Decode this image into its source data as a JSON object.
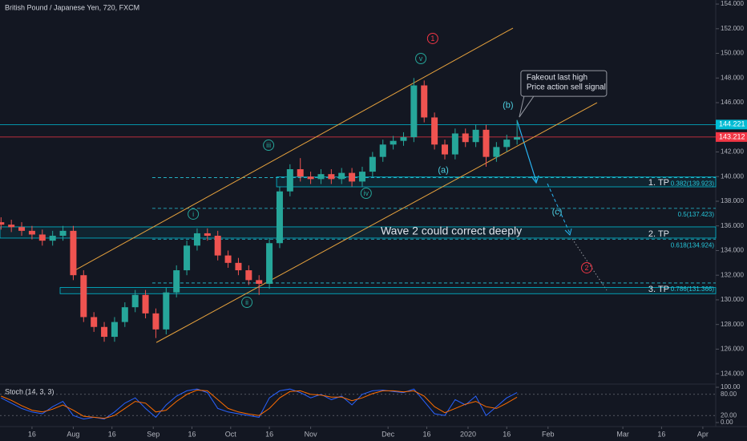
{
  "chart_data": [
    {
      "type": "candlestick",
      "title": "British Pound / Japanese Yen, 720, FXCM",
      "up_color": "#26a69a",
      "down_color": "#ef5350",
      "xlim": [
        2.6,
        280
      ],
      "ylim": [
        123.23,
        154.33
      ],
      "yticks": [
        {
          "value": 124,
          "label": "124.000"
        },
        {
          "value": 126,
          "label": "126.000"
        },
        {
          "value": 128,
          "label": "128.000"
        },
        {
          "value": 130,
          "label": "130.000"
        },
        {
          "value": 132,
          "label": "132.000"
        },
        {
          "value": 134,
          "label": "134.000"
        },
        {
          "value": 136,
          "label": "136.000"
        },
        {
          "value": 138,
          "label": "138.000"
        },
        {
          "value": 140,
          "label": "140.000"
        },
        {
          "value": 142,
          "label": "142.000"
        },
        {
          "value": 144,
          "label": "144.000"
        },
        {
          "value": 146,
          "label": "146.000"
        },
        {
          "value": 148,
          "label": "148.000"
        },
        {
          "value": 150,
          "label": "150.000"
        },
        {
          "value": 152,
          "label": "152.000"
        },
        {
          "value": 154,
          "label": "154.000"
        }
      ],
      "x": [
        3,
        7,
        11,
        15,
        19,
        23,
        27,
        31,
        35,
        39,
        43,
        47,
        51,
        55,
        59,
        63,
        67,
        71,
        75,
        79,
        83,
        87,
        91,
        95,
        99,
        103,
        107,
        111,
        115,
        119,
        123,
        127,
        131,
        135,
        139,
        143,
        147,
        151,
        155,
        159,
        163,
        167,
        171,
        175,
        179,
        183,
        187,
        191,
        195,
        199,
        203
      ],
      "open": [
        136.3,
        136.1,
        135.9,
        135.6,
        135.3,
        134.8,
        135.2,
        135.6,
        132.0,
        128.6,
        127.8,
        127.0,
        128.2,
        129.4,
        130.4,
        128.9,
        127.6,
        130.6,
        132.4,
        134.4,
        135.4,
        135.2,
        133.6,
        133.0,
        132.4,
        131.6,
        131.3,
        134.6,
        138.8,
        140.6,
        140.0,
        139.8,
        140.2,
        139.8,
        140.3,
        139.6,
        140.4,
        141.6,
        142.6,
        142.9,
        143.2,
        147.4,
        144.8,
        142.6,
        141.8,
        143.5,
        142.8,
        143.8,
        141.6,
        142.4,
        143.0
      ],
      "high": [
        136.7,
        136.5,
        136.3,
        136.0,
        135.7,
        135.6,
        136.0,
        136.0,
        132.4,
        129.0,
        128.2,
        128.6,
        129.8,
        130.8,
        130.8,
        129.3,
        131.0,
        132.8,
        134.8,
        135.8,
        135.8,
        135.6,
        134.0,
        133.4,
        132.8,
        132.0,
        135.0,
        139.2,
        141.0,
        141.5,
        140.4,
        140.6,
        140.6,
        140.7,
        140.7,
        140.8,
        142.0,
        143.0,
        143.3,
        143.6,
        148.0,
        147.8,
        145.2,
        143.0,
        143.9,
        143.9,
        144.2,
        144.2,
        142.8,
        143.4,
        144.6
      ],
      "low": [
        135.7,
        135.5,
        135.2,
        134.9,
        134.4,
        134.4,
        134.8,
        131.6,
        128.2,
        127.4,
        126.6,
        126.6,
        127.8,
        129.0,
        128.5,
        126.9,
        127.2,
        130.2,
        132.0,
        134.0,
        134.8,
        133.2,
        132.6,
        132.0,
        131.2,
        130.4,
        130.9,
        134.2,
        138.4,
        139.6,
        139.4,
        139.4,
        139.4,
        139.4,
        139.2,
        139.2,
        140.0,
        141.2,
        142.2,
        142.5,
        142.8,
        144.4,
        142.2,
        141.4,
        141.4,
        142.4,
        142.4,
        140.8,
        141.2,
        142.0,
        142.6
      ],
      "close": [
        136.1,
        135.9,
        135.6,
        135.3,
        134.8,
        135.2,
        135.6,
        132.0,
        128.6,
        127.8,
        127.0,
        128.2,
        129.4,
        130.4,
        128.9,
        127.6,
        130.6,
        132.4,
        134.4,
        135.4,
        135.2,
        133.6,
        133.0,
        132.4,
        131.6,
        131.3,
        134.6,
        138.8,
        140.6,
        140.0,
        139.8,
        140.2,
        139.8,
        140.3,
        139.6,
        140.4,
        141.6,
        142.6,
        142.9,
        143.2,
        147.4,
        144.8,
        142.6,
        141.8,
        143.5,
        142.8,
        143.8,
        141.6,
        142.4,
        143.0,
        143.2
      ],
      "price_lines": [
        {
          "value": 144.221,
          "color": "#00bcd4"
        },
        {
          "value": 143.212,
          "color": "#f23645"
        }
      ],
      "trendlines": [
        {
          "x": [
            29.9,
            201.4
          ],
          "y": [
            132.2,
            152.05
          ],
          "color": "#e8a33d"
        },
        {
          "x": [
            63.2,
            234.0
          ],
          "y": [
            126.54,
            146.0
          ],
          "color": "#e8a33d"
        }
      ],
      "zones": [
        {
          "x0": 109.8,
          "top": 139.97,
          "bottom": 139.17,
          "label": "1. TP"
        },
        {
          "x0": 2.6,
          "top": 135.92,
          "bottom": 135.01,
          "label": "2. TP"
        },
        {
          "x0": 25.9,
          "top": 131.0,
          "bottom": 130.5,
          "label": "3. TP"
        }
      ],
      "fib_start": 61.6,
      "fib_levels": [
        {
          "value": 139.923,
          "label": "0.382(139.923)"
        },
        {
          "value": 137.423,
          "label": "0.5(137.423)"
        },
        {
          "value": 134.924,
          "label": "0.618(134.924)"
        },
        {
          "value": 131.366,
          "label": "0.786(131.366)"
        }
      ],
      "wave_labels": [
        {
          "text": "1",
          "x": 170.3,
          "y": 151.21,
          "color": "#f23645",
          "circle": true
        },
        {
          "text": "v",
          "x": 165.7,
          "y": 149.58,
          "color": "#26a69a",
          "circle": true
        },
        {
          "text": "iii",
          "x": 106.7,
          "y": 142.55,
          "color": "#26a69a",
          "circle": true
        },
        {
          "text": "i",
          "x": 77.5,
          "y": 136.96,
          "color": "#26a69a",
          "circle": true
        },
        {
          "text": "ii",
          "x": 98.3,
          "y": 129.8,
          "color": "#26a69a",
          "circle": true
        },
        {
          "text": "iv",
          "x": 144.5,
          "y": 138.65,
          "color": "#26a69a",
          "circle": true
        },
        {
          "text": "(a)",
          "x": 174.4,
          "y": 140.54,
          "color": "#4dd0e1",
          "circle": false
        },
        {
          "text": "(b)",
          "x": 199.5,
          "y": 145.81,
          "color": "#4dd0e1",
          "circle": false
        },
        {
          "text": "(c)",
          "x": 218.5,
          "y": 137.15,
          "color": "#4dd0e1",
          "circle": false
        },
        {
          "text": "2",
          "x": 230.0,
          "y": 132.6,
          "color": "#f23645",
          "circle": true
        }
      ],
      "note": {
        "text": "Wave 2 could correct deeply",
        "x": 177.5,
        "y": 135.53
      },
      "callout": {
        "lines": [
          "Fakeout last high",
          "Price action sell signal"
        ],
        "x": 205.1,
        "y": 148.6
      }
    },
    {
      "type": "line",
      "title": "Stoch (14, 3, 3)",
      "xlim": [
        2.6,
        280
      ],
      "ylim": [
        -11.4,
        106.8
      ],
      "yticks": [
        {
          "value": 100,
          "label": "100.00"
        },
        {
          "value": 80,
          "label": "80.00"
        },
        {
          "value": 20,
          "label": "20.00"
        },
        {
          "value": 0,
          "label": "0.00"
        }
      ],
      "xticks": [
        {
          "value": 15,
          "label": "16"
        },
        {
          "value": 31,
          "label": "Aug"
        },
        {
          "value": 46,
          "label": "16"
        },
        {
          "value": 62,
          "label": "Sep"
        },
        {
          "value": 77,
          "label": "16"
        },
        {
          "value": 92,
          "label": "Oct"
        },
        {
          "value": 107,
          "label": "16"
        },
        {
          "value": 123,
          "label": "Nov"
        },
        {
          "value": 153,
          "label": "Dec"
        },
        {
          "value": 168,
          "label": "16"
        },
        {
          "value": 184,
          "label": "2020"
        },
        {
          "value": 199,
          "label": "16"
        },
        {
          "value": 215,
          "label": "Feb"
        },
        {
          "value": 244,
          "label": "Mar"
        },
        {
          "value": 259,
          "label": "16"
        },
        {
          "value": 275,
          "label": "Apr"
        }
      ],
      "x": [
        3,
        7,
        11,
        15,
        19,
        23,
        27,
        31,
        35,
        39,
        43,
        47,
        51,
        55,
        59,
        63,
        67,
        71,
        75,
        79,
        83,
        87,
        91,
        95,
        99,
        103,
        107,
        111,
        115,
        119,
        123,
        127,
        131,
        135,
        139,
        143,
        147,
        151,
        155,
        159,
        163,
        167,
        171,
        175,
        179,
        183,
        187,
        191,
        195,
        199,
        203
      ],
      "series": [
        {
          "color": "#2962ff",
          "values": [
            70,
            55,
            40,
            30,
            25,
            45,
            60,
            20,
            10,
            15,
            10,
            30,
            55,
            70,
            40,
            15,
            50,
            75,
            90,
            95,
            85,
            40,
            30,
            25,
            20,
            15,
            70,
            90,
            95,
            85,
            70,
            80,
            65,
            75,
            50,
            80,
            90,
            92,
            88,
            85,
            95,
            60,
            25,
            20,
            65,
            50,
            75,
            20,
            45,
            70,
            85
          ]
        },
        {
          "color": "#ff6d00",
          "values": [
            75,
            63,
            48,
            35,
            30,
            38,
            50,
            35,
            18,
            15,
            12,
            20,
            40,
            60,
            55,
            30,
            35,
            60,
            80,
            92,
            90,
            65,
            40,
            30,
            24,
            20,
            40,
            70,
            88,
            90,
            80,
            78,
            72,
            72,
            62,
            70,
            82,
            90,
            90,
            87,
            90,
            75,
            45,
            28,
            40,
            52,
            60,
            45,
            40,
            55,
            72
          ]
        }
      ]
    }
  ]
}
